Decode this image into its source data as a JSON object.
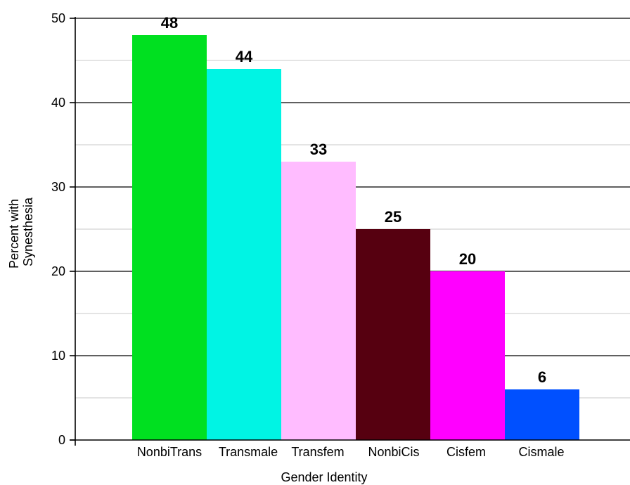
{
  "chart_data": {
    "type": "bar",
    "categories": [
      "NonbiTrans",
      "Transmale",
      "Transfem",
      "NonbiCis",
      "Cisfem",
      "Cismale"
    ],
    "values": [
      48,
      44,
      33,
      25,
      20,
      6
    ],
    "data_labels": [
      "48",
      "44",
      "33",
      "25",
      "20",
      "6"
    ],
    "colors": [
      "#00e020",
      "#00f4e4",
      "#ffbcff",
      "#560010",
      "#ff00ff",
      "#0050ff"
    ],
    "title": "",
    "xlabel": "Gender Identity",
    "ylabel_lines": [
      "Percent with",
      "Synesthesia"
    ],
    "ylim": [
      0,
      50
    ],
    "yticks": [
      0,
      10,
      20,
      30,
      40,
      50
    ],
    "ytick_labels": [
      "0",
      "10",
      "20",
      "30",
      "40",
      "50"
    ],
    "grid": {
      "major": true,
      "minor": true,
      "minor_step": 5
    }
  }
}
